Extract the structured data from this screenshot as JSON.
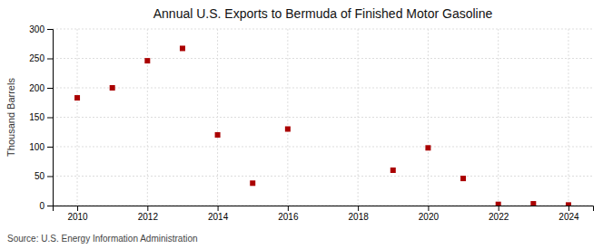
{
  "chart_data": {
    "type": "scatter",
    "title": "Annual U.S. Exports to Bermuda of Finished Motor Gasoline",
    "ylabel": "Thousand Barrels",
    "annotations": [
      "Source: U.S. Energy Information Administration"
    ],
    "x": [
      2010,
      2011,
      2012,
      2013,
      2014,
      2015,
      2016,
      2019,
      2020,
      2021,
      2022,
      2023,
      2024
    ],
    "values": [
      183,
      200,
      246,
      267,
      120,
      38,
      130,
      60,
      98,
      46,
      2,
      3,
      1
    ],
    "color": "#aa0000",
    "marker": "square",
    "xlim": [
      2009.3,
      2024.7
    ],
    "ylim": [
      0,
      300
    ],
    "xticks": [
      2010,
      2012,
      2014,
      2016,
      2018,
      2020,
      2022,
      2024
    ],
    "yticks": [
      0,
      50,
      100,
      150,
      200,
      250,
      300
    ],
    "grid": true
  }
}
